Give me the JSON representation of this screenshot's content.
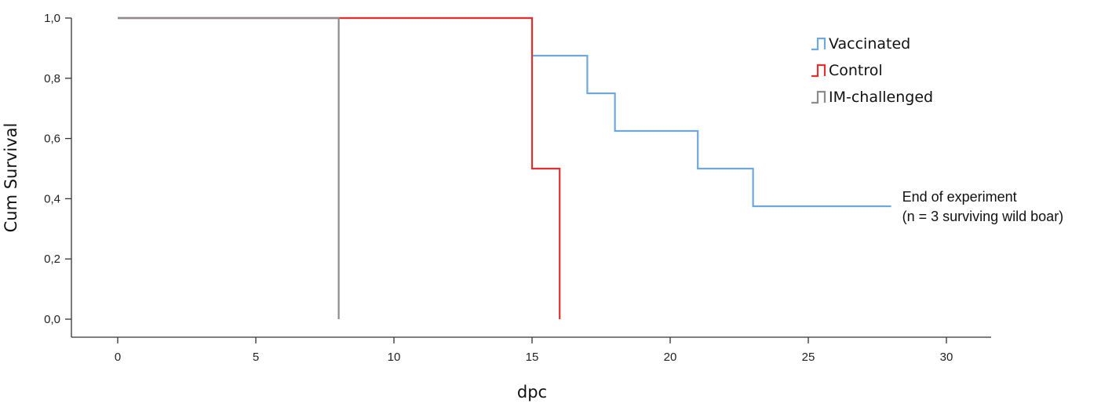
{
  "chart_data": {
    "type": "line",
    "step": true,
    "title": "",
    "xlabel": "dpc",
    "ylabel": "Cum Survival",
    "xlim": [
      0,
      30
    ],
    "ylim": [
      0,
      1
    ],
    "x_ticks": [
      0,
      5,
      10,
      15,
      20,
      25,
      30
    ],
    "x_tick_labels": [
      "0",
      "5",
      "10",
      "15",
      "20",
      "25",
      "30"
    ],
    "y_ticks": [
      0,
      0.2,
      0.4,
      0.6,
      0.8,
      1.0
    ],
    "y_tick_labels": [
      "0,0",
      "0,2",
      "0,4",
      "0,6",
      "0,8",
      "1,0"
    ],
    "grid": false,
    "legend_position": "top-right",
    "series": [
      {
        "name": "Vaccinated",
        "color": "#6fa8dc",
        "x": [
          0,
          15,
          17,
          18,
          21,
          23,
          28
        ],
        "y": [
          1.0,
          0.875,
          0.75,
          0.625,
          0.5,
          0.375,
          0.375
        ]
      },
      {
        "name": "Control",
        "color": "#e03030",
        "x": [
          0,
          15,
          16
        ],
        "y": [
          1.0,
          0.5,
          0.0
        ]
      },
      {
        "name": "IM-challenged",
        "color": "#8c8c8c",
        "x": [
          0,
          8
        ],
        "y": [
          1.0,
          0.0
        ]
      }
    ],
    "annotations": [
      {
        "x": 28,
        "y": 0.375,
        "lines": [
          "End of experiment",
          "(n = 3 surviving wild boar)"
        ]
      }
    ]
  }
}
